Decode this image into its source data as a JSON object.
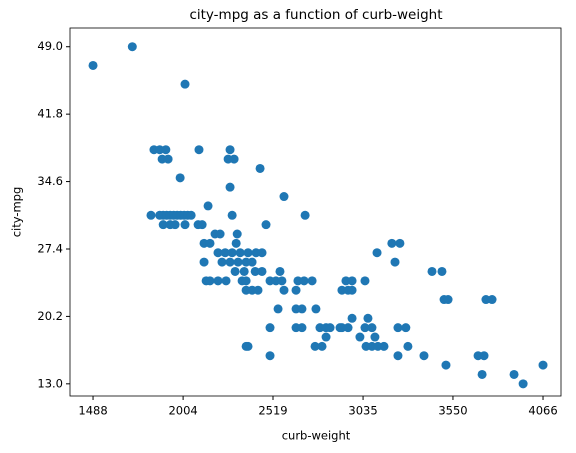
{
  "chart_data": {
    "type": "scatter",
    "title": "city-mpg as a function of curb-weight",
    "xlabel": "curb-weight",
    "ylabel": "city-mpg",
    "color": "#1f77b4",
    "xlim": [
      1356,
      4169
    ],
    "ylim": [
      11.7,
      51.0
    ],
    "xticks": [
      1488,
      2004,
      2519,
      3035,
      3550,
      4066
    ],
    "yticks": [
      {
        "value": 13,
        "label": "13.0"
      },
      {
        "value": 20.2,
        "label": "20.2"
      },
      {
        "value": 27.4,
        "label": "27.4"
      },
      {
        "value": 34.6,
        "label": "34.6"
      },
      {
        "value": 41.8,
        "label": "41.8"
      },
      {
        "value": 49,
        "label": "49.0"
      }
    ],
    "x": [
      1488,
      1713,
      2015,
      1837,
      1870,
      1905,
      1884,
      1918,
      1987,
      2095,
      2273,
      2262,
      2296,
      2273,
      2445,
      2582,
      1820,
      1870,
      1890,
      1910,
      1930,
      1950,
      1970,
      1990,
      2010,
      2030,
      2050,
      1890,
      1930,
      1958,
      2015,
      2090,
      2113,
      2147,
      2285,
      2479,
      2703,
      2124,
      2158,
      2187,
      2216,
      2308,
      2314,
      2204,
      2245,
      2285,
      2331,
      2376,
      2422,
      2456,
      2227,
      2273,
      2319,
      2365,
      2399,
      2124,
      2302,
      2354,
      2417,
      2456,
      2136,
      2158,
      2204,
      2250,
      2342,
      2502,
      2536,
      2570,
      2662,
      2697,
      2743,
      2559,
      2365,
      2399,
      2433,
      2582,
      2651,
      2365,
      2548,
      2651,
      2685,
      2765,
      2651,
      2502,
      2685,
      2365,
      2376,
      2502,
      2788,
      2823,
      2846,
      2903,
      2760,
      2800,
      2823,
      2914,
      2949,
      2937,
      2972,
      3046,
      2972,
      2914,
      2949,
      3046,
      3086,
      2972,
      3063,
      3017,
      3103,
      3052,
      3086,
      3120,
      3155,
      3115,
      3200,
      3246,
      3218,
      3235,
      3280,
      3292,
      3235,
      3384,
      3430,
      3487,
      3499,
      3522,
      3510,
      3694,
      3728,
      3717,
      3739,
      3774,
      3900,
      3952,
      4066
    ],
    "values": [
      47,
      49,
      45,
      38,
      38,
      38,
      37,
      37,
      35,
      38,
      38,
      37,
      37,
      34,
      36,
      33,
      31,
      31,
      31,
      31,
      31,
      31,
      31,
      31,
      31,
      31,
      31,
      30,
      30,
      30,
      30,
      30,
      30,
      32,
      31,
      30,
      31,
      28,
      28,
      29,
      29,
      28,
      29,
      27,
      27,
      27,
      27,
      27,
      27,
      27,
      26,
      26,
      26,
      26,
      26,
      26,
      25,
      25,
      25,
      25,
      24,
      24,
      24,
      24,
      24,
      24,
      24,
      24,
      24,
      24,
      24,
      25,
      23,
      23,
      23,
      23,
      23,
      24,
      21,
      21,
      21,
      21,
      19,
      19,
      19,
      17,
      17,
      16,
      19,
      19,
      19,
      19,
      17,
      17,
      18,
      23,
      23,
      24,
      24,
      24,
      23,
      19,
      19,
      19,
      19,
      20,
      20,
      18,
      18,
      17,
      17,
      17,
      17,
      27,
      28,
      28,
      26,
      19,
      19,
      17,
      16,
      16,
      25,
      25,
      22,
      22,
      15,
      16,
      16,
      14,
      22,
      22,
      14,
      13,
      15
    ]
  }
}
